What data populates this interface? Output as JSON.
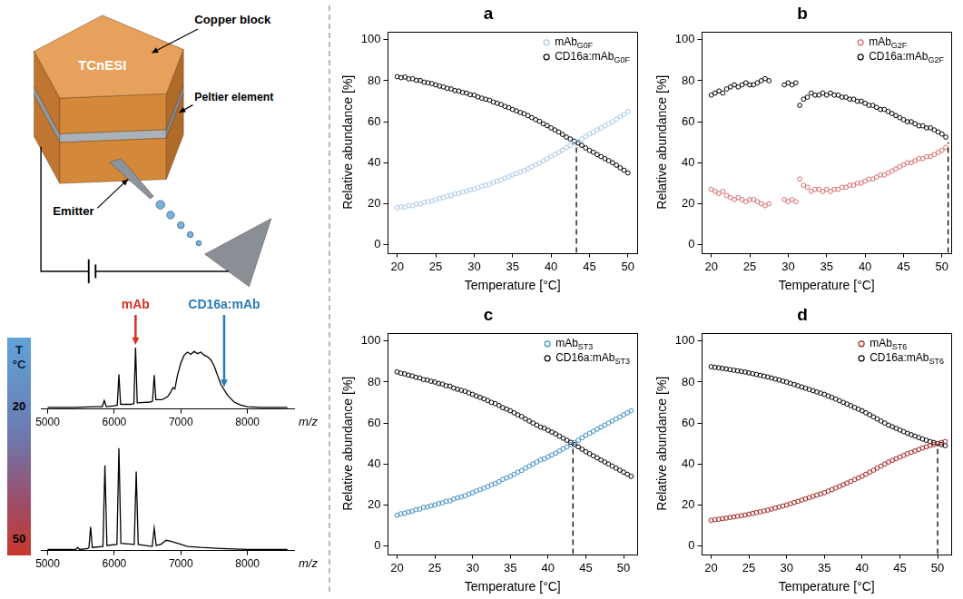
{
  "schematic": {
    "copper_block": "Copper block",
    "device": "TCnESI",
    "peltier": "Peltier element",
    "emitter": "Emitter"
  },
  "color_bar": {
    "title": "T",
    "unit": "°C",
    "ticks": [
      20,
      50
    ]
  },
  "chart_data": [
    {
      "type": "line",
      "x_label": "m/z",
      "color": "#000000",
      "grid": false,
      "tick_labels": "x",
      "xlim": [
        4900,
        8700
      ],
      "xticks": [
        5000,
        6000,
        7000,
        8000
      ],
      "ylim": [
        0,
        100
      ],
      "x": [
        5000,
        5400,
        5700,
        5820,
        5850,
        5880,
        6000,
        6045,
        6070,
        6095,
        6250,
        6295,
        6320,
        6345,
        6540,
        6575,
        6600,
        6625,
        6720,
        6800,
        6850,
        6880,
        6910,
        6950,
        7000,
        7050,
        7100,
        7150,
        7200,
        7250,
        7300,
        7350,
        7400,
        7450,
        7500,
        7550,
        7600,
        7700,
        7800,
        7900,
        8000,
        8200,
        8600
      ],
      "values": [
        2,
        2,
        3,
        3,
        11,
        3,
        4,
        5,
        45,
        6,
        6,
        7,
        80,
        8,
        9,
        10,
        44,
        12,
        12,
        16,
        22,
        28,
        26,
        44,
        60,
        70,
        74,
        71,
        75,
        72,
        74,
        70,
        68,
        64,
        56,
        44,
        32,
        18,
        9,
        5,
        3,
        2,
        2
      ],
      "annotations": [
        {
          "text": "mAb",
          "x": 6320,
          "y": 80,
          "color": "#d7301f"
        },
        {
          "text": "CD16a:mAb",
          "x": 7650,
          "y": 25,
          "color": "#2b7bba"
        }
      ]
    },
    {
      "type": "line",
      "x_label": "m/z",
      "color": "#000000",
      "grid": false,
      "tick_labels": "x",
      "xlim": [
        4900,
        8700
      ],
      "xticks": [
        5000,
        6000,
        7000,
        8000
      ],
      "ylim": [
        0,
        105
      ],
      "x": [
        5000,
        5300,
        5420,
        5450,
        5480,
        5600,
        5620,
        5645,
        5670,
        5830,
        5860,
        5890,
        6040,
        6070,
        6100,
        6300,
        6330,
        6360,
        6570,
        6600,
        6630,
        6700,
        6780,
        6850,
        6950,
        7100,
        7300,
        7600,
        8000,
        8600
      ],
      "values": [
        1,
        1,
        1,
        3,
        1,
        2,
        3,
        23,
        3,
        4,
        83,
        5,
        6,
        100,
        7,
        6,
        77,
        6,
        4,
        22,
        5,
        6,
        10,
        9,
        7,
        4,
        3,
        2,
        1,
        1
      ]
    },
    {
      "type": "scatter",
      "title": "a",
      "x_label": "Temperature [°C]",
      "y_label": "Relative abundance [%]",
      "xlim": [
        18.8,
        51.2
      ],
      "xticks": [
        20,
        25,
        30,
        35,
        40,
        45,
        50
      ],
      "ylim": [
        -4,
        104
      ],
      "yticks": [
        0,
        20,
        40,
        60,
        80,
        100
      ],
      "grid": false,
      "legend": "upper right",
      "marker": "open circle",
      "crossing_line": {
        "x": 43.3,
        "y": 50
      },
      "x": [
        20,
        20.5,
        21,
        21.5,
        22,
        22.5,
        23,
        23.5,
        24,
        24.5,
        25,
        25.5,
        26,
        26.5,
        27,
        27.5,
        28,
        28.5,
        29,
        29.5,
        30,
        30.5,
        31,
        31.5,
        32,
        32.5,
        33,
        33.5,
        34,
        34.5,
        35,
        35.5,
        36,
        36.5,
        37,
        37.5,
        38,
        38.5,
        39,
        39.5,
        40,
        40.5,
        41,
        41.5,
        42,
        42.5,
        43,
        43.5,
        44,
        44.5,
        45,
        45.5,
        46,
        46.5,
        47,
        47.5,
        48,
        48.5,
        49,
        49.5,
        50
      ],
      "series": [
        {
          "name": "mAbG0F",
          "color": "#a6c8e8",
          "values": [
            18.0,
            18.5,
            18.2,
            19.1,
            19.0,
            19.8,
            19.9,
            20.7,
            21.0,
            21.4,
            22.0,
            22.6,
            23.0,
            23.7,
            24.0,
            24.8,
            25.0,
            25.7,
            26.0,
            26.8,
            27.0,
            27.9,
            28.5,
            29.0,
            29.5,
            30.4,
            31.0,
            31.6,
            32.5,
            33.1,
            34.0,
            34.7,
            35.5,
            36.1,
            37.0,
            38.0,
            39.0,
            39.8,
            41.0,
            41.9,
            43.0,
            44.0,
            45.0,
            46.2,
            47.5,
            48.4,
            49.5,
            50.4,
            51.5,
            52.8,
            54.0,
            54.9,
            56.0,
            57.0,
            58.0,
            59.0,
            60.0,
            61.2,
            62.5,
            63.7,
            65.0
          ]
        },
        {
          "name": "CD16a:mAbG0F",
          "color": "#000000",
          "values": [
            82.0,
            81.5,
            81.8,
            80.9,
            81.0,
            80.2,
            80.1,
            79.3,
            79.0,
            78.6,
            78.0,
            77.4,
            77.0,
            76.3,
            76.0,
            75.2,
            75.0,
            74.3,
            74.0,
            73.2,
            73.0,
            72.1,
            71.5,
            71.0,
            70.5,
            69.6,
            69.0,
            68.4,
            67.5,
            66.9,
            66.0,
            65.3,
            64.5,
            63.9,
            63.0,
            62.0,
            61.0,
            60.2,
            59.0,
            58.1,
            57.0,
            56.0,
            55.0,
            53.8,
            52.5,
            51.6,
            50.5,
            49.6,
            48.5,
            47.2,
            46.0,
            45.1,
            44.0,
            43.0,
            42.0,
            41.0,
            40.0,
            38.8,
            37.5,
            36.3,
            35.0
          ]
        }
      ]
    },
    {
      "type": "scatter",
      "title": "b",
      "x_label": "Temperature [°C]",
      "y_label": "Relative abundance [%]",
      "xlim": [
        18.8,
        51.2
      ],
      "xticks": [
        20,
        25,
        30,
        35,
        40,
        45,
        50
      ],
      "ylim": [
        -4,
        104
      ],
      "yticks": [
        0,
        20,
        40,
        60,
        80,
        100
      ],
      "grid": false,
      "legend": "upper right",
      "marker": "open circle",
      "crossing_line": {
        "x": 50.8,
        "y": 50
      },
      "x": [
        20,
        20.5,
        21,
        21.5,
        22,
        22.5,
        23,
        23.5,
        24,
        24.5,
        25,
        25.5,
        26,
        26.5,
        27,
        27.5,
        28,
        28.5,
        29,
        29.5,
        30,
        30.5,
        31,
        31.5,
        32,
        32.5,
        33,
        33.5,
        34,
        34.5,
        35,
        35.5,
        36,
        36.5,
        37,
        37.5,
        38,
        38.5,
        39,
        39.5,
        40,
        40.5,
        41,
        41.5,
        42,
        42.5,
        43,
        43.5,
        44,
        44.5,
        45,
        45.5,
        46,
        46.5,
        47,
        47.5,
        48,
        48.5,
        49,
        49.5,
        50,
        50.5
      ],
      "series": [
        {
          "name": "mAbG2F",
          "color": "#d96a6a",
          "values": [
            27,
            26,
            25,
            26,
            24,
            23,
            22,
            23,
            22,
            21,
            22,
            22,
            21,
            20,
            19,
            20,
            null,
            null,
            null,
            22,
            21,
            22,
            21,
            32,
            29,
            28,
            26,
            27,
            27,
            26,
            27,
            26,
            27,
            27,
            28,
            28,
            29,
            29,
            30,
            30,
            31,
            32,
            32,
            33,
            34,
            34,
            35,
            36,
            37,
            38,
            39,
            40,
            40,
            41,
            42,
            42,
            43,
            43,
            44,
            45,
            46,
            47.5
          ]
        },
        {
          "name": "CD16a:mAbG2F",
          "color": "#000000",
          "values": [
            73,
            74,
            75,
            74,
            76,
            77,
            78,
            77,
            78,
            79,
            78,
            78,
            79,
            80,
            81,
            80,
            null,
            null,
            null,
            78,
            79,
            78,
            79,
            68,
            71,
            72,
            74,
            73,
            73,
            74,
            73,
            74,
            73,
            73,
            72,
            72,
            71,
            71,
            70,
            70,
            69,
            68,
            68,
            67,
            66,
            66,
            65,
            64,
            63,
            62,
            61,
            60,
            60,
            59,
            58,
            58,
            57,
            57,
            56,
            55,
            54,
            52.5
          ]
        }
      ]
    },
    {
      "type": "scatter",
      "title": "c",
      "x_label": "Temperature [°C]",
      "y_label": "Relative abundance [%]",
      "xlim": [
        18.8,
        51.8
      ],
      "xticks": [
        20,
        25,
        30,
        35,
        40,
        45,
        50
      ],
      "ylim": [
        -4,
        104
      ],
      "yticks": [
        0,
        20,
        40,
        60,
        80,
        100
      ],
      "grid": false,
      "legend": "upper right",
      "marker": "open circle",
      "crossing_line": {
        "x": 43.3,
        "y": 50
      },
      "x": [
        20,
        20.5,
        21,
        21.5,
        22,
        22.5,
        23,
        23.5,
        24,
        24.5,
        25,
        25.5,
        26,
        26.5,
        27,
        27.5,
        28,
        28.5,
        29,
        29.5,
        30,
        30.5,
        31,
        31.5,
        32,
        32.5,
        33,
        33.5,
        34,
        34.5,
        35,
        35.5,
        36,
        36.5,
        37,
        37.5,
        38,
        38.5,
        39,
        39.5,
        40,
        40.5,
        41,
        41.5,
        42,
        42.5,
        43,
        43.5,
        44,
        44.5,
        45,
        45.5,
        46,
        46.5,
        47,
        47.5,
        48,
        48.5,
        49,
        49.5,
        50,
        50.5,
        51
      ],
      "series": [
        {
          "name": "mAbST3",
          "color": "#3a8cc4",
          "values": [
            15.0,
            15.7,
            16.0,
            16.6,
            17.0,
            17.7,
            18.0,
            18.8,
            19.0,
            19.6,
            20.0,
            20.7,
            21.0,
            21.8,
            22.0,
            22.9,
            23.5,
            24.0,
            24.5,
            25.3,
            26.0,
            26.8,
            27.5,
            28.2,
            29.0,
            29.9,
            30.5,
            31.4,
            32.5,
            33.2,
            34.0,
            35.0,
            36.0,
            36.8,
            38.0,
            39.0,
            40.0,
            41.0,
            42.0,
            42.5,
            43.5,
            44.4,
            45.3,
            46.4,
            47.4,
            48.4,
            49.4,
            50.5,
            51.6,
            52.8,
            54.0,
            55.0,
            56.0,
            57.0,
            58.0,
            59.0,
            60.0,
            61.0,
            62.0,
            63.0,
            64.0,
            65.0,
            66.0
          ]
        },
        {
          "name": "CD16a:mAbST3",
          "color": "#000000",
          "values": [
            85.0,
            84.3,
            84.0,
            83.4,
            83.0,
            82.3,
            82.0,
            81.2,
            81.0,
            80.4,
            80.0,
            79.3,
            79.0,
            78.2,
            78.0,
            77.1,
            76.5,
            76.0,
            75.5,
            74.7,
            74.0,
            73.2,
            72.5,
            71.8,
            71.0,
            70.1,
            69.5,
            68.6,
            67.5,
            66.8,
            66.0,
            65.0,
            64.0,
            63.2,
            62.0,
            61.0,
            60.0,
            59.0,
            58.0,
            57.5,
            56.5,
            55.6,
            54.7,
            53.6,
            52.6,
            51.6,
            50.6,
            49.5,
            48.4,
            47.2,
            46.0,
            45.0,
            44.0,
            43.0,
            42.0,
            41.0,
            40.0,
            39.0,
            38.0,
            37.0,
            36.0,
            35.0,
            34.0
          ]
        }
      ]
    },
    {
      "type": "scatter",
      "title": "d",
      "x_label": "Temperature [°C]",
      "y_label": "Relative abundance [%]",
      "xlim": [
        18.8,
        51.8
      ],
      "xticks": [
        20,
        25,
        30,
        35,
        40,
        45,
        50
      ],
      "ylim": [
        -4,
        104
      ],
      "yticks": [
        0,
        20,
        40,
        60,
        80,
        100
      ],
      "grid": false,
      "legend": "upper right",
      "marker": "open circle",
      "crossing_line": {
        "x": 50.0,
        "y": 50
      },
      "x": [
        20,
        20.5,
        21,
        21.5,
        22,
        22.5,
        23,
        23.5,
        24,
        24.5,
        25,
        25.5,
        26,
        26.5,
        27,
        27.5,
        28,
        28.5,
        29,
        29.5,
        30,
        30.5,
        31,
        31.5,
        32,
        32.5,
        33,
        33.5,
        34,
        34.5,
        35,
        35.5,
        36,
        36.5,
        37,
        37.5,
        38,
        38.5,
        39,
        39.5,
        40,
        40.5,
        41,
        41.5,
        42,
        42.5,
        43,
        43.5,
        44,
        44.5,
        45,
        45.5,
        46,
        46.5,
        47,
        47.5,
        48,
        48.5,
        49,
        49.5,
        50,
        50.5,
        51
      ],
      "series": [
        {
          "name": "mAbST6",
          "color": "#a51c1c",
          "values": [
            12.5,
            12.8,
            13.0,
            13.3,
            13.6,
            13.9,
            14.2,
            14.5,
            14.8,
            15.1,
            15.5,
            15.9,
            16.3,
            16.7,
            17.1,
            17.5,
            18.0,
            18.5,
            19.0,
            19.5,
            20.0,
            20.6,
            21.2,
            21.8,
            22.4,
            23.0,
            23.6,
            24.2,
            24.8,
            25.4,
            26.0,
            26.8,
            27.5,
            28.3,
            29.1,
            29.9,
            30.7,
            31.5,
            32.4,
            33.2,
            34.0,
            35.0,
            36.0,
            37.0,
            38.0,
            39.0,
            40.0,
            41.0,
            41.8,
            42.6,
            43.4,
            44.2,
            45.0,
            45.7,
            46.4,
            47.1,
            47.8,
            48.4,
            49.0,
            49.5,
            50.0,
            50.5,
            51.0
          ]
        },
        {
          "name": "CD16a:mAbST6",
          "color": "#000000",
          "values": [
            87.5,
            87.2,
            87.0,
            86.7,
            86.4,
            86.1,
            85.8,
            85.5,
            85.2,
            84.9,
            84.5,
            84.1,
            83.7,
            83.3,
            82.9,
            82.5,
            82.0,
            81.5,
            81.0,
            80.5,
            80.0,
            79.4,
            78.8,
            78.2,
            77.6,
            77.0,
            76.4,
            75.8,
            75.2,
            74.6,
            74.0,
            73.2,
            72.5,
            71.7,
            70.9,
            70.1,
            69.3,
            68.5,
            67.6,
            66.8,
            66.0,
            65.0,
            64.0,
            63.0,
            62.0,
            61.0,
            60.0,
            59.0,
            58.2,
            57.4,
            56.6,
            55.8,
            55.0,
            54.3,
            53.6,
            52.9,
            52.2,
            51.6,
            51.0,
            50.5,
            50.0,
            49.5,
            49.0
          ]
        }
      ]
    }
  ]
}
